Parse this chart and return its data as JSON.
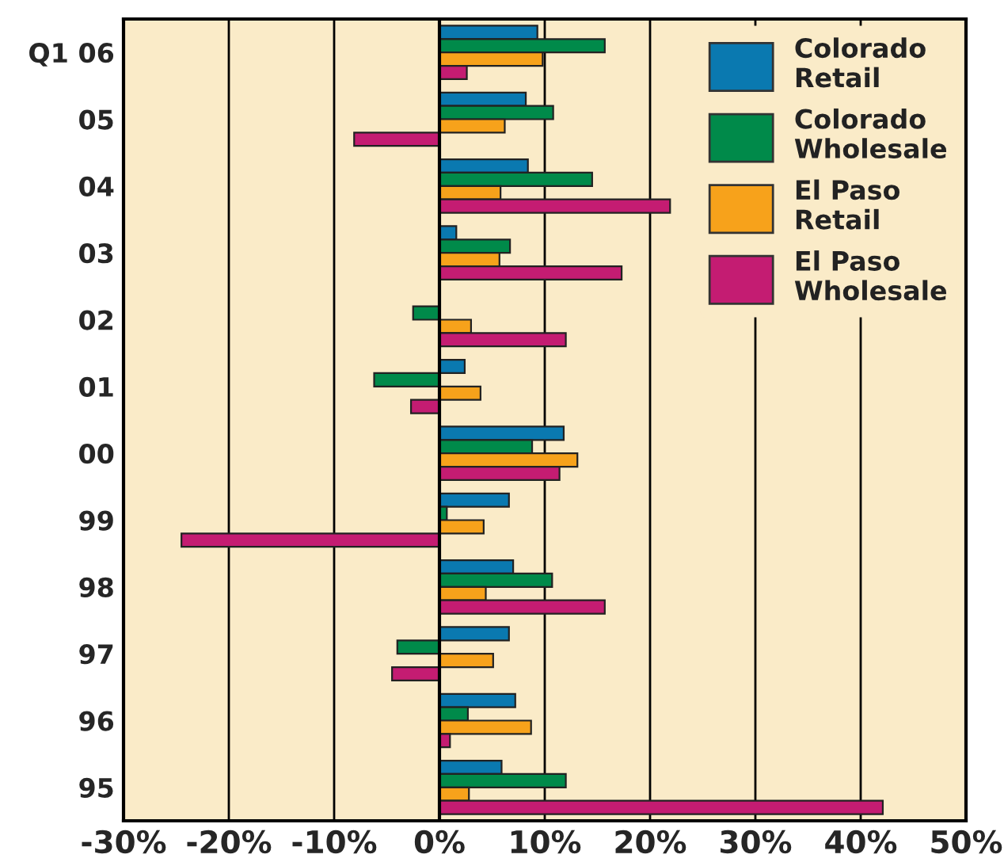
{
  "chart_data": {
    "type": "bar",
    "orientation": "horizontal",
    "categories": [
      "Q1 06",
      "05",
      "04",
      "03",
      "02",
      "01",
      "00",
      "99",
      "98",
      "97",
      "96",
      "95"
    ],
    "series": [
      {
        "name": "Colorado\nRetail",
        "color": "#0a79b0",
        "values": [
          9.3,
          8.2,
          8.4,
          1.6,
          0,
          2.4,
          11.8,
          6.6,
          7.0,
          6.6,
          7.2,
          5.9
        ]
      },
      {
        "name": "Colorado\nWholesale",
        "color": "#008a4a",
        "values": [
          15.7,
          10.8,
          14.5,
          6.7,
          -2.5,
          -6.2,
          8.8,
          0.7,
          10.7,
          -4.0,
          2.7,
          12.0
        ]
      },
      {
        "name": "El Paso\nRetail",
        "color": "#f7a21b",
        "values": [
          9.8,
          6.2,
          5.8,
          5.7,
          3.0,
          3.9,
          13.1,
          4.2,
          4.4,
          5.1,
          8.7,
          2.8
        ]
      },
      {
        "name": "El Paso\nWholesale",
        "color": "#c41c72",
        "values": [
          2.6,
          -8.1,
          21.9,
          17.3,
          12.0,
          -2.7,
          11.4,
          -24.5,
          15.7,
          -4.5,
          1.0,
          42.1
        ]
      }
    ],
    "xlim": [
      -30,
      50
    ],
    "xticks": [
      {
        "value": -30,
        "label": "-30%"
      },
      {
        "value": -20,
        "label": "-20%"
      },
      {
        "value": -10,
        "label": "-10%"
      },
      {
        "value": 0,
        "label": "0%"
      },
      {
        "value": 10,
        "label": "10%"
      },
      {
        "value": 20,
        "label": "20%"
      },
      {
        "value": 30,
        "label": "30%"
      },
      {
        "value": 40,
        "label": "40%"
      },
      {
        "value": 50,
        "label": "50%"
      }
    ],
    "grid": "x",
    "legend": "top right"
  }
}
